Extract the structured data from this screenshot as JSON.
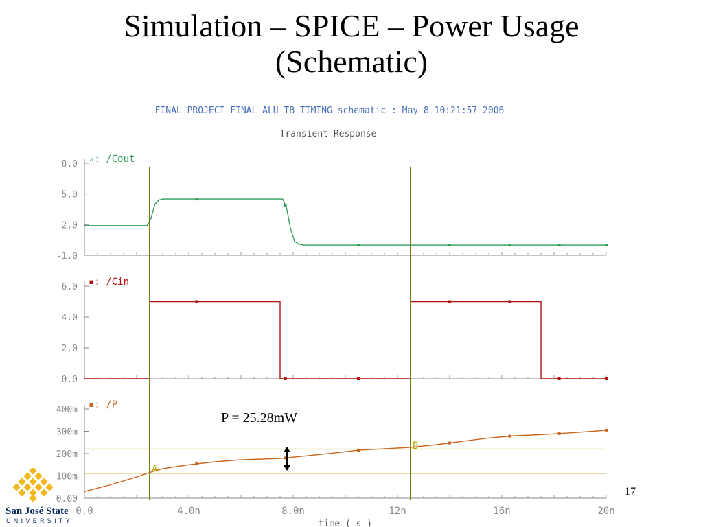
{
  "slide": {
    "title_line1": "Simulation – SPICE – Power Usage",
    "title_line2": "(Schematic)",
    "page_number": "17",
    "logo": {
      "name": "San José State",
      "sub": "UNIVERSITY",
      "color": "#0b2a5c",
      "accent": "#f2b81e"
    }
  },
  "chart_data": {
    "type": "line",
    "header": "FINAL_PROJECT FINAL_ALU_TB_TIMING schematic : May  8 10:21:57 2006",
    "title": "Transient Response",
    "xlabel": "time ( s )",
    "xlim": [
      0,
      20
    ],
    "x_ticks": [
      {
        "v": 0,
        "label": "0.0"
      },
      {
        "v": 4,
        "label": "4.0n"
      },
      {
        "v": 8,
        "label": "8.0n"
      },
      {
        "v": 12,
        "label": "12n"
      },
      {
        "v": 16,
        "label": "16n"
      },
      {
        "v": 20,
        "label": "20n"
      }
    ],
    "cursors": [
      {
        "label": "A",
        "x": 2.5,
        "color": "#7a7a00"
      },
      {
        "label": "B",
        "x": 12.5,
        "color": "#7a7a00"
      }
    ],
    "annotation": "P = 25.28mW",
    "panels": [
      {
        "name": "/Cout",
        "marker": "▵",
        "color": "#2e9e5b",
        "ylim": [
          -1,
          8
        ],
        "y_ticks": [
          {
            "v": 8,
            "label": "8.0"
          },
          {
            "v": 5,
            "label": "5.0"
          },
          {
            "v": 2,
            "label": "2.0"
          },
          {
            "v": -1,
            "label": "-1.0"
          }
        ],
        "x": [
          0,
          2.4,
          2.55,
          2.7,
          2.85,
          3.0,
          7.6,
          7.75,
          7.9,
          8.05,
          8.2,
          8.4,
          20
        ],
        "y": [
          1.9,
          1.9,
          2.6,
          4.0,
          4.4,
          4.5,
          4.5,
          3.6,
          1.6,
          0.4,
          0.1,
          0.0,
          0.0
        ]
      },
      {
        "name": "/Cin",
        "marker": "▪",
        "color": "#b01010",
        "ylim": [
          0,
          6
        ],
        "y_ticks": [
          {
            "v": 6,
            "label": "6.0"
          },
          {
            "v": 4,
            "label": "4.0"
          },
          {
            "v": 2,
            "label": "2.0"
          },
          {
            "v": 0,
            "label": "0.0"
          }
        ],
        "x": [
          0,
          2.5,
          2.5,
          7.5,
          7.5,
          12.5,
          12.5,
          17.5,
          17.5,
          20
        ],
        "y": [
          0,
          0,
          5,
          5,
          0,
          0,
          5,
          5,
          0,
          0
        ]
      },
      {
        "name": "/P",
        "marker": "▪",
        "color": "#c8641e",
        "ylim": [
          0,
          400
        ],
        "y_ticks": [
          {
            "v": 400,
            "label": "400m"
          },
          {
            "v": 300,
            "label": "300m"
          },
          {
            "v": 200,
            "label": "200m"
          },
          {
            "v": 100,
            "label": "100m"
          },
          {
            "v": 0,
            "label": "0.00"
          }
        ],
        "x": [
          0,
          1.0,
          2.0,
          2.5,
          3.0,
          4.0,
          5.0,
          6.0,
          7.5,
          8.5,
          9.5,
          10.5,
          12.5,
          13.5,
          14.5,
          15.5,
          16.5,
          17.5,
          18.5,
          19.5,
          20
        ],
        "y": [
          30,
          60,
          95,
          115,
          132,
          150,
          163,
          172,
          178,
          190,
          202,
          215,
          228,
          240,
          255,
          270,
          280,
          285,
          292,
          300,
          305
        ],
        "reference_lines": [
          111,
          220
        ]
      }
    ]
  }
}
